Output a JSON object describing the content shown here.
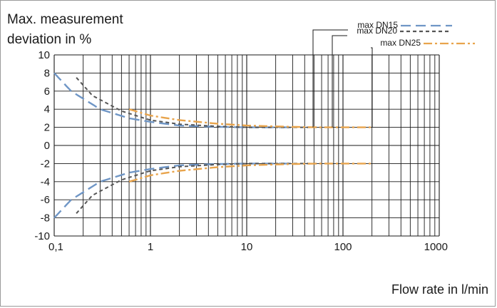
{
  "chart_data": {
    "type": "line",
    "title": "",
    "ylabel_line1": "Max. measurement",
    "ylabel_line2": "deviation in %",
    "xlabel": "Flow rate in l/min",
    "x_scale": "log",
    "xlim": [
      0.1,
      1000
    ],
    "ylim": [
      -10,
      10
    ],
    "x_ticks": [
      0.1,
      1,
      10,
      100,
      1000
    ],
    "x_tick_labels": [
      "0,1",
      "1",
      "10",
      "100",
      "1000"
    ],
    "y_ticks": [
      10,
      8,
      6,
      4,
      2,
      0,
      -2,
      -4,
      -6,
      -8,
      -10
    ],
    "y_tick_labels": [
      "10",
      "8",
      "6",
      "4",
      "2",
      "0",
      "-2",
      "-4",
      "-6",
      "-8",
      "-10"
    ],
    "grid": true,
    "legend_position": "top-right",
    "series": [
      {
        "name": "max DN15",
        "color": "#6f96c6",
        "dash": "long-dash",
        "upper": [
          [
            0.1,
            8.0
          ],
          [
            0.15,
            6.0
          ],
          [
            0.3,
            4.0
          ],
          [
            0.6,
            3.0
          ],
          [
            1,
            2.6
          ],
          [
            2,
            2.2
          ],
          [
            5,
            2.05
          ],
          [
            10,
            2.0
          ],
          [
            30,
            2.0
          ]
        ],
        "lower": [
          [
            0.1,
            -8.0
          ],
          [
            0.15,
            -6.0
          ],
          [
            0.3,
            -4.0
          ],
          [
            0.6,
            -3.0
          ],
          [
            1,
            -2.6
          ],
          [
            2,
            -2.2
          ],
          [
            5,
            -2.05
          ],
          [
            10,
            -2.0
          ],
          [
            30,
            -2.0
          ]
        ]
      },
      {
        "name": "max DN20",
        "color": "#555555",
        "dash": "short-dash",
        "upper": [
          [
            0.17,
            7.5
          ],
          [
            0.25,
            5.5
          ],
          [
            0.5,
            3.8
          ],
          [
            1,
            2.8
          ],
          [
            2,
            2.35
          ],
          [
            5,
            2.1
          ],
          [
            10,
            2.0
          ],
          [
            30,
            2.0
          ],
          [
            60,
            2.0
          ]
        ],
        "lower": [
          [
            0.17,
            -7.5
          ],
          [
            0.25,
            -5.5
          ],
          [
            0.5,
            -3.8
          ],
          [
            1,
            -2.8
          ],
          [
            2,
            -2.35
          ],
          [
            5,
            -2.1
          ],
          [
            10,
            -2.0
          ],
          [
            30,
            -2.0
          ],
          [
            60,
            -2.0
          ]
        ]
      },
      {
        "name": "max DN25",
        "color": "#e8a44c",
        "dash": "dash-dot",
        "upper": [
          [
            0.6,
            4.0
          ],
          [
            1,
            3.3
          ],
          [
            2,
            2.8
          ],
          [
            5,
            2.4
          ],
          [
            10,
            2.2
          ],
          [
            30,
            2.05
          ],
          [
            60,
            2.0
          ],
          [
            200,
            2.0
          ]
        ],
        "lower": [
          [
            0.6,
            -4.0
          ],
          [
            1,
            -3.3
          ],
          [
            2,
            -2.8
          ],
          [
            5,
            -2.4
          ],
          [
            10,
            -2.2
          ],
          [
            30,
            -2.05
          ],
          [
            60,
            -2.0
          ],
          [
            200,
            -2.0
          ]
        ]
      }
    ]
  }
}
